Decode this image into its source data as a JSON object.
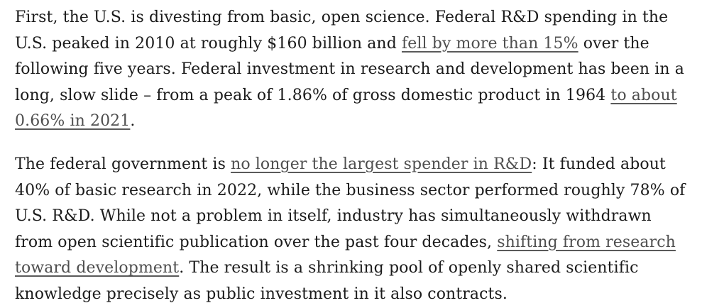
{
  "colors": {
    "background": "#ffffff",
    "text": "#1b1b1b",
    "link": "#4e4e4e",
    "link_underline": "#5a5a5a"
  },
  "article": {
    "paragraphs": [
      {
        "segments": [
          {
            "type": "text",
            "text": "First, the U.S. is divesting from basic, open science. Federal R&D spending in the U.S. peaked in 2010 at roughly $160 billion and "
          },
          {
            "type": "link",
            "text": "fell by more than 15%"
          },
          {
            "type": "text",
            "text": " over the following five years. Federal investment in research and development has been in a long, slow slide – from a peak of 1.86% of gross domestic product in 1964 "
          },
          {
            "type": "link",
            "text": "to about 0.66% in 2021"
          },
          {
            "type": "text",
            "text": "."
          }
        ]
      },
      {
        "segments": [
          {
            "type": "text",
            "text": "The federal government is "
          },
          {
            "type": "link",
            "text": "no longer the largest spender in R&D"
          },
          {
            "type": "text",
            "text": ": It funded about 40% of basic research in 2022, while the business sector performed roughly 78% of U.S. R&D. While not a problem in itself, industry has simultaneously withdrawn from open scientific publication over the past four decades, "
          },
          {
            "type": "link",
            "text": "shifting from research toward development"
          },
          {
            "type": "text",
            "text": ". The result is a shrinking pool of openly shared scientific knowledge precisely as public investment in it also contracts."
          }
        ]
      }
    ]
  }
}
